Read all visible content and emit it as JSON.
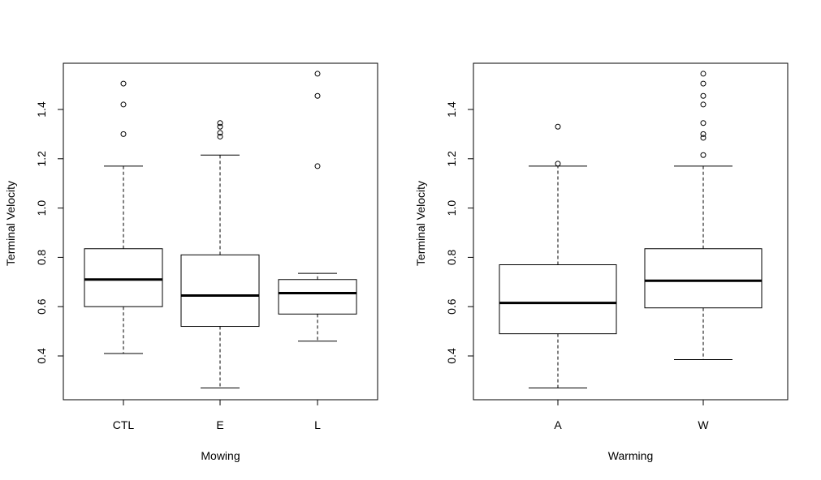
{
  "chart_data": [
    {
      "type": "boxplot",
      "title": "",
      "xlabel": "Mowing",
      "ylabel": "Terminal Velocity",
      "ylim": [
        0.22,
        1.58
      ],
      "yticks": [
        0.4,
        0.6,
        0.8,
        1.0,
        1.2,
        1.4
      ],
      "ytick_labels": [
        "0.4",
        "0.6",
        "0.8",
        "1.0",
        "1.2",
        "1.4"
      ],
      "categories": [
        "CTL",
        "E",
        "L"
      ],
      "boxes": [
        {
          "category": "CTL",
          "whisker_low": 0.41,
          "q1": 0.6,
          "median": 0.71,
          "q3": 0.835,
          "whisker_high": 1.17,
          "outliers": [
            1.3,
            1.42,
            1.505
          ]
        },
        {
          "category": "E",
          "whisker_low": 0.27,
          "q1": 0.52,
          "median": 0.645,
          "q3": 0.81,
          "whisker_high": 1.215,
          "outliers": [
            1.29,
            1.305,
            1.33,
            1.345
          ]
        },
        {
          "category": "L",
          "whisker_low": 0.46,
          "q1": 0.57,
          "median": 0.655,
          "q3": 0.71,
          "whisker_high": 0.735,
          "outliers": [
            1.17,
            1.455,
            1.545
          ]
        }
      ]
    },
    {
      "type": "boxplot",
      "title": "",
      "xlabel": "Warming",
      "ylabel": "Terminal Velocity",
      "ylim": [
        0.22,
        1.58
      ],
      "yticks": [
        0.4,
        0.6,
        0.8,
        1.0,
        1.2,
        1.4
      ],
      "ytick_labels": [
        "0.4",
        "0.6",
        "0.8",
        "1.0",
        "1.2",
        "1.4"
      ],
      "categories": [
        "A",
        "W"
      ],
      "boxes": [
        {
          "category": "A",
          "whisker_low": 0.27,
          "q1": 0.49,
          "median": 0.615,
          "q3": 0.77,
          "whisker_high": 1.17,
          "outliers": [
            1.18,
            1.33
          ]
        },
        {
          "category": "W",
          "whisker_low": 0.385,
          "q1": 0.595,
          "median": 0.705,
          "q3": 0.835,
          "whisker_high": 1.17,
          "outliers": [
            1.215,
            1.285,
            1.3,
            1.345,
            1.42,
            1.455,
            1.505,
            1.545
          ]
        }
      ]
    }
  ]
}
